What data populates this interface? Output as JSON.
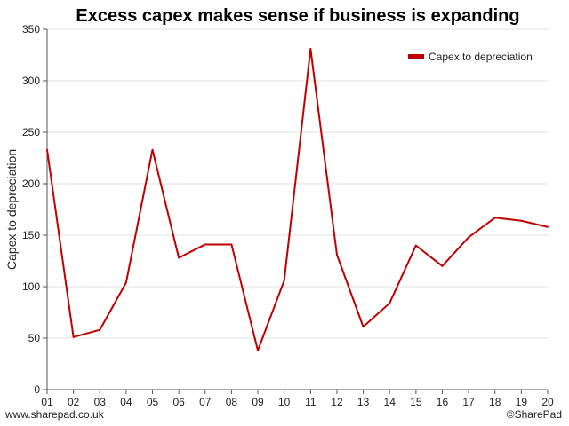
{
  "footer": {
    "left": "www.sharepad.co.uk",
    "right": "©SharePad"
  },
  "chart_data": {
    "type": "line",
    "title": "Excess capex makes sense if business is expanding",
    "xlabel": "",
    "ylabel": "Capex to depreciation",
    "categories": [
      "01",
      "02",
      "03",
      "04",
      "05",
      "06",
      "07",
      "08",
      "09",
      "10",
      "11",
      "12",
      "13",
      "14",
      "15",
      "16",
      "17",
      "18",
      "19",
      "20"
    ],
    "series": [
      {
        "name": "Capex to depreciation",
        "color": "#c00000",
        "values": [
          233,
          51,
          58,
          104,
          233,
          128,
          141,
          141,
          38,
          106,
          331,
          131,
          61,
          84,
          140,
          120,
          148,
          167,
          164,
          158
        ]
      }
    ],
    "ylim": [
      0,
      350
    ],
    "yticks": [
      0,
      50,
      100,
      150,
      200,
      250,
      300,
      350
    ],
    "grid": true,
    "legend_position": "top-right"
  }
}
